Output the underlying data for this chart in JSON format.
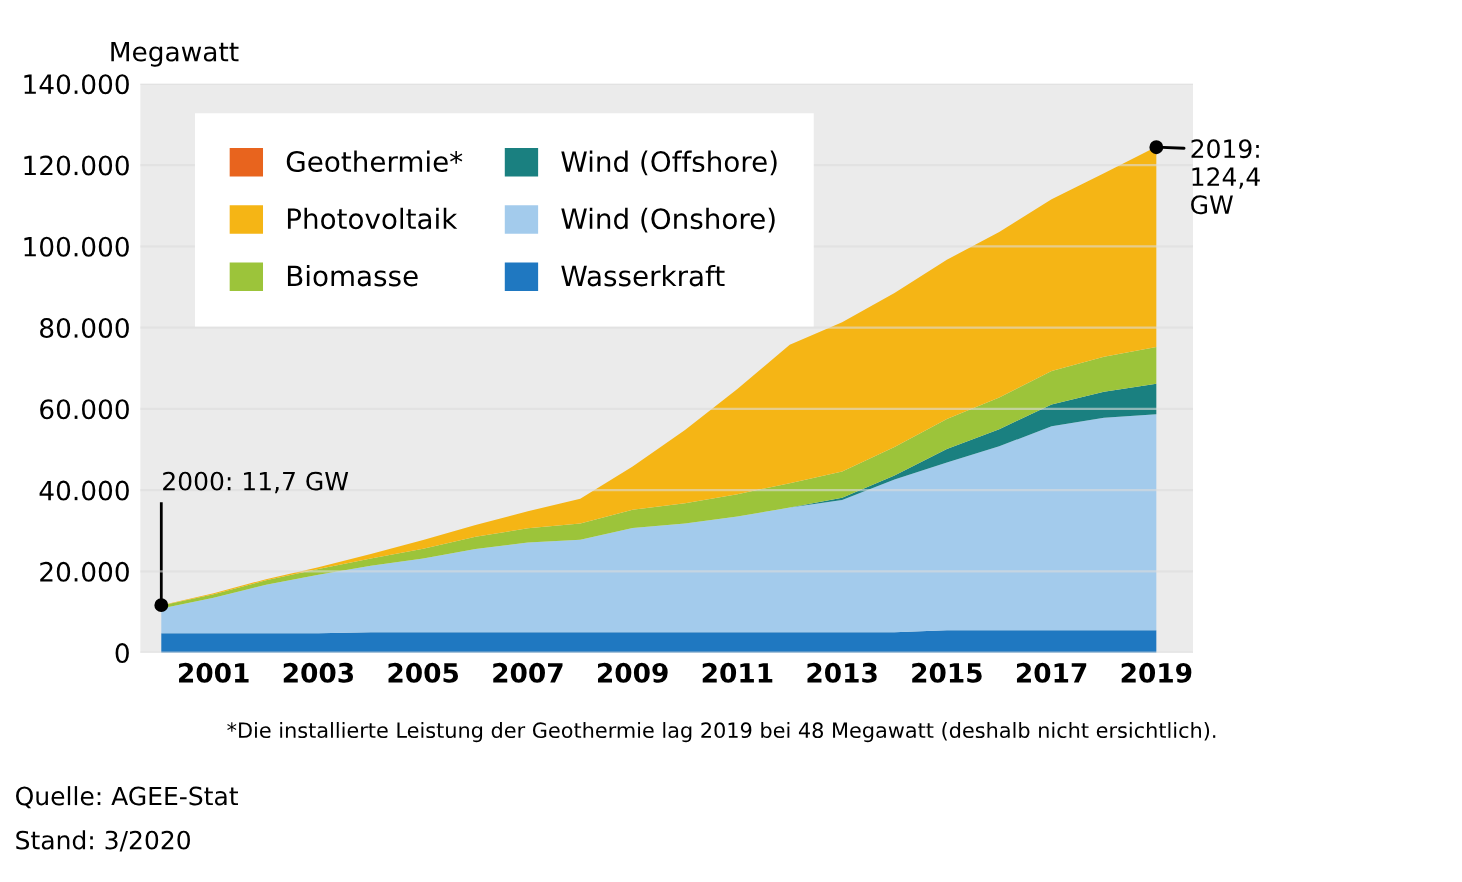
{
  "chart_data": {
    "type": "area",
    "stacked": true,
    "ylabel": "Megawatt",
    "x": [
      2000,
      2001,
      2002,
      2003,
      2004,
      2005,
      2006,
      2007,
      2008,
      2009,
      2010,
      2011,
      2012,
      2013,
      2014,
      2015,
      2016,
      2017,
      2018,
      2019
    ],
    "series": [
      {
        "name": "Wasserkraft",
        "color": "#1f78c1",
        "values": [
          4800,
          4800,
          4800,
          4800,
          5000,
          5000,
          5000,
          5000,
          5000,
          5000,
          5000,
          5000,
          5000,
          5000,
          5000,
          5500,
          5500,
          5500,
          5500,
          5500
        ]
      },
      {
        "name": "Wind (Onshore)",
        "color": "#a3cbec",
        "values": [
          6100,
          8700,
          11900,
          14400,
          16400,
          18200,
          20500,
          22100,
          22800,
          25700,
          26800,
          28500,
          30700,
          32600,
          37600,
          41300,
          45300,
          50200,
          52300,
          53200
        ]
      },
      {
        "name": "Wind (Offshore)",
        "color": "#1a8080",
        "values": [
          0,
          0,
          0,
          0,
          0,
          0,
          0,
          0,
          0,
          0,
          0,
          0,
          0,
          500,
          1000,
          3300,
          4200,
          5400,
          6400,
          7500
        ]
      },
      {
        "name": "Biomasse",
        "color": "#9cc43a",
        "values": [
          700,
          900,
          1100,
          1400,
          1800,
          2400,
          3000,
          3500,
          4000,
          4500,
          5000,
          5500,
          6000,
          6500,
          7000,
          7400,
          7800,
          8200,
          8600,
          9000
        ]
      },
      {
        "name": "Photovoltaik",
        "color": "#f5b515",
        "values": [
          100,
          200,
          300,
          400,
          1100,
          2100,
          2900,
          4200,
          6100,
          10600,
          18000,
          25900,
          34100,
          36700,
          37900,
          39200,
          40700,
          42300,
          45200,
          49300
        ]
      },
      {
        "name": "Geothermie*",
        "color": "#e8641e",
        "values": [
          null,
          null,
          null,
          null,
          null,
          null,
          null,
          null,
          null,
          null,
          null,
          null,
          null,
          null,
          null,
          null,
          null,
          null,
          null,
          null
        ]
      }
    ],
    "xlim": [
      1999.6,
      2019.7
    ],
    "xticks": [
      2001,
      2003,
      2005,
      2007,
      2009,
      2011,
      2013,
      2015,
      2017,
      2019
    ],
    "ylim": [
      0,
      140000
    ],
    "yticks": [
      {
        "value": 0,
        "label": "0"
      },
      {
        "value": 20000,
        "label": "20.000"
      },
      {
        "value": 40000,
        "label": "40.000"
      },
      {
        "value": 60000,
        "label": "60.000"
      },
      {
        "value": 80000,
        "label": "80.000"
      },
      {
        "value": 100000,
        "label": "100.000"
      },
      {
        "value": 120000,
        "label": "120.000"
      },
      {
        "value": 140000,
        "label": "140.000"
      }
    ],
    "grid": "y",
    "legend": "top left",
    "annotations": [
      {
        "text": "2000: 11,7 GW",
        "x": 2000,
        "y": 11700
      },
      {
        "text": "2019:\n124,4\nGW",
        "x": 2019,
        "y": 124400
      },
      "*Die installierte Leistung der Geothermie lag 2019 bei 48 Megawatt (deshalb nicht ersichtlich).",
      "Quelle: AGEE-Stat",
      "Stand: 3/2020"
    ]
  }
}
